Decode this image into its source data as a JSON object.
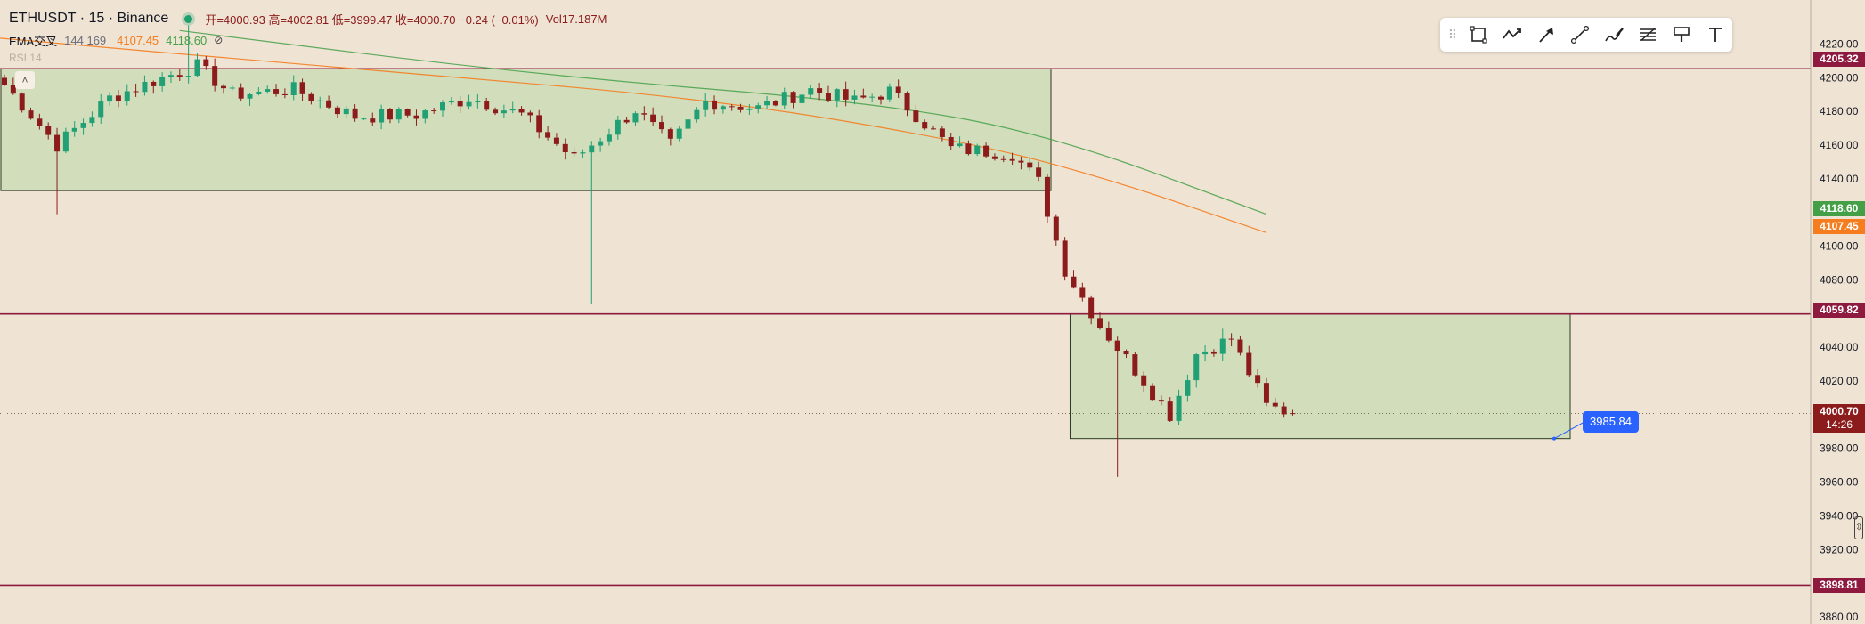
{
  "legend": {
    "symbol": "ETHUSDT · 15 · Binance",
    "ohlc": "开=4000.93 高=4002.81 低=3999.47 收=4000.70 −0.24 (−0.01%)",
    "volume": "Vol17.187M",
    "ema_name": "EMA交叉",
    "ema_params": "144 169",
    "ema_fast_value": "4107.45",
    "ema_slow_value": "4118.60",
    "hidden_indicator": "RSI 14",
    "collapse_icon": "chevron-up-icon"
  },
  "toolbar": {
    "tools": [
      {
        "name": "rectangle-icon"
      },
      {
        "name": "path-icon"
      },
      {
        "name": "arrow-icon"
      },
      {
        "name": "trend-line-icon"
      },
      {
        "name": "brush-icon"
      },
      {
        "name": "fib-retracement-icon"
      },
      {
        "name": "highlighter-icon"
      },
      {
        "name": "text-icon"
      }
    ]
  },
  "colors": {
    "background": "#efe3d3",
    "up": "#20a074",
    "down": "#8c1c1c",
    "zone_fill": "#cddcb8",
    "level_line": "#8e1a40",
    "ema_fast": "#f57c1f",
    "ema_slow": "#43a047",
    "measure": "#2962ff"
  },
  "axis": {
    "ticks": [
      "4220.00",
      "4200.00",
      "4180.00",
      "4160.00",
      "4140.00",
      "4120.00",
      "4100.00",
      "4080.00",
      "4060.00",
      "4040.00",
      "4020.00",
      "4000.00",
      "3980.00",
      "3960.00",
      "3940.00",
      "3920.00",
      "3900.00",
      "3880.00"
    ]
  },
  "price_tags": {
    "level_4205": "4205.32",
    "ema_slow": "4118.60",
    "ema_fast": "4107.45",
    "level_4059": "4059.82",
    "last_price": "4000.70",
    "countdown": "14:26",
    "level_3898": "3898.81"
  },
  "measure_label": "3985.84",
  "chart_data": {
    "type": "candlestick",
    "symbol": "ETHUSDT",
    "interval": "15",
    "exchange": "Binance",
    "ylim": [
      3875,
      4230
    ],
    "candle_count": 148,
    "anchors": [
      [
        0,
        4196
      ],
      [
        6,
        4160
      ],
      [
        12,
        4188
      ],
      [
        18,
        4200
      ],
      [
        22,
        4207
      ],
      [
        26,
        4190
      ],
      [
        33,
        4193
      ],
      [
        40,
        4177
      ],
      [
        47,
        4178
      ],
      [
        53,
        4188
      ],
      [
        59,
        4178
      ],
      [
        65,
        4152
      ],
      [
        72,
        4181
      ],
      [
        76,
        4160
      ],
      [
        80,
        4186
      ],
      [
        86,
        4182
      ],
      [
        92,
        4193
      ],
      [
        97,
        4186
      ],
      [
        101,
        4192
      ],
      [
        104,
        4178
      ],
      [
        108,
        4158
      ],
      [
        115,
        4155
      ],
      [
        118,
        4138
      ],
      [
        121,
        4086
      ],
      [
        125,
        4053
      ],
      [
        130,
        4020
      ],
      [
        133,
        4000
      ],
      [
        136,
        4036
      ],
      [
        140,
        4045
      ],
      [
        144,
        4005
      ],
      [
        147,
        4001
      ]
    ],
    "last_ohlc": {
      "open": 4000.93,
      "high": 4002.81,
      "low": 3999.47,
      "close": 4000.7
    },
    "notable_wicks": [
      {
        "index": 6,
        "low": 4119
      },
      {
        "index": 21,
        "high": 4231
      },
      {
        "index": 67,
        "low": 4066
      },
      {
        "index": 127,
        "low": 3963
      },
      {
        "index": 139,
        "high": 4051
      }
    ],
    "ema_fast": {
      "name": "EMA 144",
      "points": [
        [
          -6,
          4226
        ],
        [
          40,
          4205
        ],
        [
          80,
          4188
        ],
        [
          110,
          4162
        ],
        [
          126,
          4140
        ],
        [
          144,
          4108
        ]
      ]
    },
    "ema_slow": {
      "name": "EMA 169",
      "points": [
        [
          20,
          4228
        ],
        [
          60,
          4202
        ],
        [
          100,
          4185
        ],
        [
          120,
          4165
        ],
        [
          144,
          4119
        ]
      ]
    },
    "horizontal_levels": [
      4205.32,
      4059.82,
      3898.81
    ],
    "last_price": 4000.7,
    "zones": [
      {
        "from_index": 0,
        "to_index": 118,
        "top": 4205.32,
        "bottom": 4133
      },
      {
        "from_index": 122,
        "to_index": 176,
        "top": 4059.82,
        "bottom": 3985.84
      }
    ],
    "measure_value": 3985.84
  }
}
